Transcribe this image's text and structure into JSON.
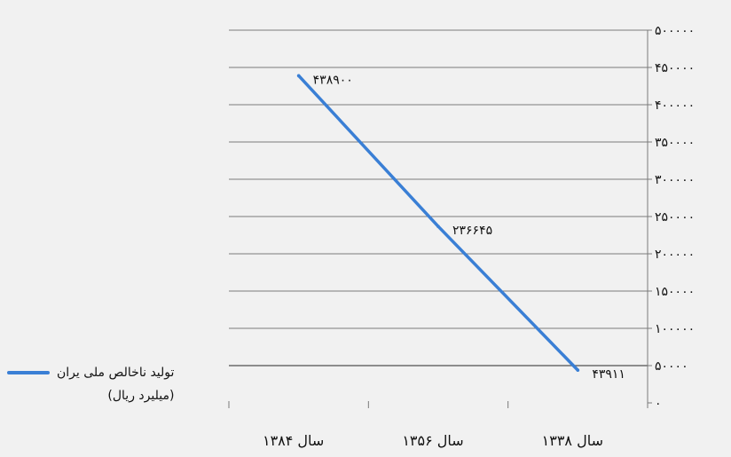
{
  "chart_data": {
    "type": "line",
    "categories": [
      "سال ۱۳۸۴",
      "سال ۱۳۵۶",
      "سال ۱۳۳۸"
    ],
    "series": [
      {
        "name": "تولید ناخالص ملی یران",
        "values": [
          438900,
          236645,
          43911
        ],
        "data_labels": [
          "۴۳۸۹۰۰",
          "۲۳۶۶۴۵",
          "۴۳۹۱۱"
        ]
      }
    ],
    "ylim": [
      0,
      500000
    ],
    "yticks": [
      0,
      50000,
      100000,
      150000,
      200000,
      250000,
      300000,
      350000,
      400000,
      450000,
      500000
    ],
    "ytick_labels": [
      "۰",
      "۵۰۰۰۰",
      "۱۰۰۰۰۰",
      "۱۵۰۰۰۰",
      "۲۰۰۰۰۰",
      "۲۵۰۰۰۰",
      "۳۰۰۰۰۰",
      "۳۵۰۰۰۰",
      "۴۰۰۰۰۰",
      "۴۵۰۰۰۰",
      "۵۰۰۰۰۰"
    ],
    "grid": true,
    "legend_position": "bottom-left",
    "line_color": "#3a7fd5"
  },
  "legend": {
    "series_label": "تولید ناخالص ملی یران",
    "unit_label": "(میلیرد ریال)"
  }
}
